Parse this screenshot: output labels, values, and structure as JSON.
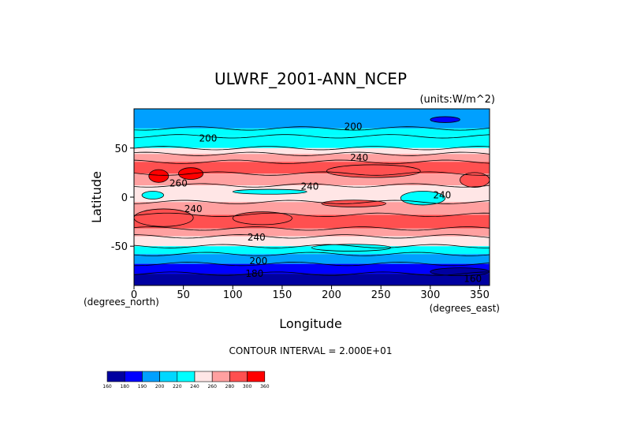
{
  "chart_data": {
    "type": "heatmap",
    "title": "ULWRF_2001-ANN_NCEP",
    "units": "(units:W/m^2)",
    "xlabel": "Longitude",
    "ylabel": "Latitude",
    "x_unit_note": "(degrees_east)",
    "y_unit_note": "(degrees_north)",
    "xlim": [
      0,
      360
    ],
    "ylim": [
      -90,
      90
    ],
    "x_ticks": [
      0,
      50,
      100,
      150,
      200,
      250,
      300,
      350
    ],
    "y_ticks": [
      -50,
      0,
      50
    ],
    "contour_interval_text": "CONTOUR INTERVAL = 2.000E+01",
    "contour_labels": [
      {
        "text": "200",
        "lon": 222,
        "lat": 72
      },
      {
        "text": "200",
        "lon": 75,
        "lat": 60
      },
      {
        "text": "240",
        "lon": 228,
        "lat": 40
      },
      {
        "text": "260",
        "lon": 45,
        "lat": 14
      },
      {
        "text": "240",
        "lon": 178,
        "lat": 11
      },
      {
        "text": "240",
        "lon": 312,
        "lat": 2
      },
      {
        "text": "240",
        "lon": 60,
        "lat": -12
      },
      {
        "text": "240",
        "lon": 124,
        "lat": -41
      },
      {
        "text": "200",
        "lon": 126,
        "lat": -65
      },
      {
        "text": "180",
        "lon": 122,
        "lat": -78
      },
      {
        "text": "160",
        "lon": 343,
        "lat": -83
      }
    ],
    "bands": [
      {
        "lat_top": 90,
        "lat_bottom": 70,
        "value": 200
      },
      {
        "lat_top": 70,
        "lat_bottom": 62,
        "value": 220
      },
      {
        "lat_top": 62,
        "lat_bottom": 50,
        "value": 220
      },
      {
        "lat_top": 50,
        "lat_bottom": 44,
        "value": 240
      },
      {
        "lat_top": 44,
        "lat_bottom": 36,
        "value": 260
      },
      {
        "lat_top": 36,
        "lat_bottom": 24,
        "value": 280
      },
      {
        "lat_top": 24,
        "lat_bottom": 12,
        "value": 260
      },
      {
        "lat_top": 12,
        "lat_bottom": -5,
        "value": 240
      },
      {
        "lat_top": -5,
        "lat_bottom": -18,
        "value": 260
      },
      {
        "lat_top": -18,
        "lat_bottom": -32,
        "value": 280
      },
      {
        "lat_top": -32,
        "lat_bottom": -40,
        "value": 260
      },
      {
        "lat_top": -40,
        "lat_bottom": -50,
        "value": 240
      },
      {
        "lat_top": -50,
        "lat_bottom": -58,
        "value": 220
      },
      {
        "lat_top": -58,
        "lat_bottom": -68,
        "value": 200
      },
      {
        "lat_top": -68,
        "lat_bottom": -78,
        "value": 180
      },
      {
        "lat_top": -78,
        "lat_bottom": -90,
        "value": 160
      }
    ],
    "patches": [
      {
        "lon": [
          15,
          35
        ],
        "lat": [
          15,
          28
        ],
        "value": 300
      },
      {
        "lon": [
          45,
          70
        ],
        "lat": [
          18,
          30
        ],
        "value": 300
      },
      {
        "lon": [
          8,
          30
        ],
        "lat": [
          -2,
          6
        ],
        "value": 220
      },
      {
        "lon": [
          100,
          175
        ],
        "lat": [
          3,
          8
        ],
        "value": 220
      },
      {
        "lon": [
          270,
          315
        ],
        "lat": [
          -8,
          6
        ],
        "value": 220
      },
      {
        "lon": [
          190,
          255
        ],
        "lat": [
          -10,
          -3
        ],
        "value": 280
      },
      {
        "lon": [
          195,
          290
        ],
        "lat": [
          20,
          33
        ],
        "value": 280
      },
      {
        "lon": [
          0,
          60
        ],
        "lat": [
          -30,
          -12
        ],
        "value": 280
      },
      {
        "lon": [
          100,
          160
        ],
        "lat": [
          -28,
          -15
        ],
        "value": 280
      },
      {
        "lon": [
          330,
          360
        ],
        "lat": [
          10,
          25
        ],
        "value": 280
      },
      {
        "lon": [
          180,
          260
        ],
        "lat": [
          -55,
          -48
        ],
        "value": 220
      },
      {
        "lon": [
          300,
          360
        ],
        "lat": [
          -80,
          -72
        ],
        "value": 160
      },
      {
        "lon": [
          300,
          330
        ],
        "lat": [
          76,
          82
        ],
        "value": 180
      }
    ],
    "legend": {
      "levels": [
        "160",
        "180",
        "190",
        "200",
        "220",
        "240",
        "260",
        "280",
        "300",
        "360"
      ],
      "colors": [
        "#0000a0",
        "#0000ff",
        "#00a0ff",
        "#00d7ff",
        "#00ffff",
        "#ffe6e6",
        "#ffa0a0",
        "#ff5050",
        "#ff0000"
      ]
    },
    "colors": {
      "160": "#0000a0",
      "180": "#0000ff",
      "190": "#00a0ff",
      "200": "#00a0ff",
      "220": "#00ffff",
      "240": "#ffe6e6",
      "260": "#ffa0a0",
      "280": "#ff5050",
      "300": "#ff0000"
    }
  }
}
